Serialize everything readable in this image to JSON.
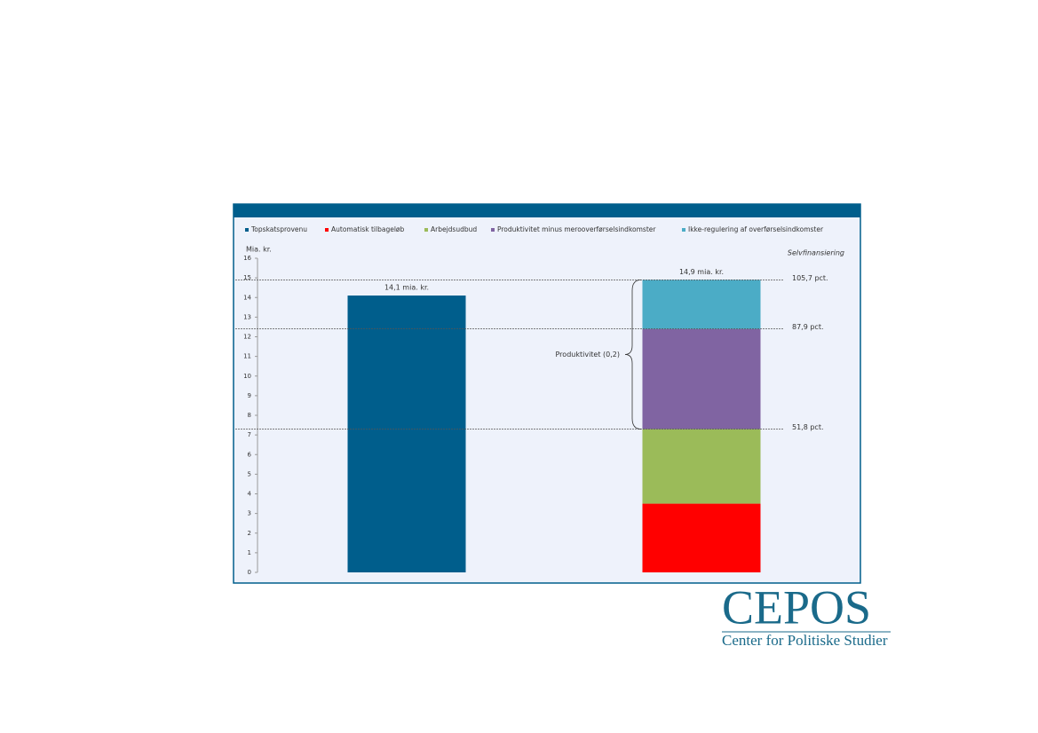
{
  "chart_data": {
    "type": "stacked_bar",
    "categories": [
      null,
      null
    ],
    "y_label": "Mia. kr.",
    "ylim": [
      0,
      16
    ],
    "yticks": [
      0,
      1,
      2,
      3,
      4,
      5,
      6,
      7,
      8,
      9,
      10,
      11,
      12,
      13,
      14,
      15,
      16
    ],
    "series": [
      {
        "name": "Topskatsprovenu",
        "color": "#005e8c",
        "values": [
          14.1,
          null
        ]
      },
      {
        "name": "Automatisk tilbageløb",
        "color": "#ff0000",
        "values": [
          null,
          3.5
        ]
      },
      {
        "name": "Arbejdsudbud",
        "color": "#9bbb59",
        "values": [
          null,
          3.8
        ]
      },
      {
        "name": "Produktivitet minus merooverførselsindkomster",
        "color": "#8064a2",
        "values": [
          null,
          5.1
        ]
      },
      {
        "name": "Ikke-regulering af overførselsindkomster",
        "color": "#4bacc6",
        "values": [
          null,
          2.5
        ]
      }
    ],
    "total_labels": [
      "14,1 mia. kr.",
      "14,9 mia. kr."
    ],
    "reference_title": "Selvfinansiering",
    "reference_lines": [
      {
        "value": 14.9,
        "label": "105,7 pct."
      },
      {
        "value": 12.4,
        "label": "87,9 pct."
      },
      {
        "value": 7.3,
        "label": "51,8 pct."
      }
    ],
    "brace_label": "Produktivitet (0,2)"
  },
  "logo": {
    "name": "CEPOS",
    "subtitle": "Center for Politiske Studier"
  }
}
